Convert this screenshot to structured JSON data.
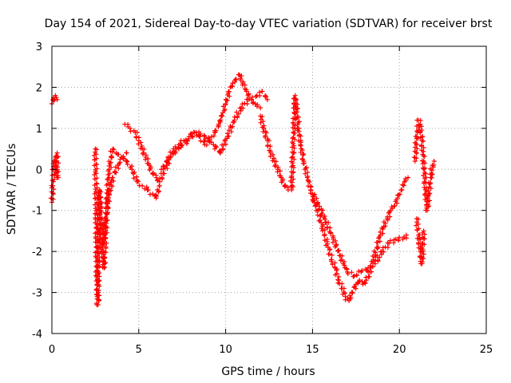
{
  "chart_data": {
    "type": "scatter",
    "title": "Day 154 of 2021, Sidereal Day-to-day VTEC variation (SDTVAR) for receiver brst",
    "xlabel": "GPS time / hours",
    "ylabel": "SDTVAR / TECUs",
    "xlim": [
      0,
      25
    ],
    "ylim": [
      -4,
      3
    ],
    "xticks": [
      "0",
      "5",
      "10",
      "15",
      "20",
      "25"
    ],
    "yticks": [
      "-4",
      "-3",
      "-2",
      "-1",
      "0",
      "1",
      "2",
      "3"
    ],
    "grid": true,
    "marker": "+",
    "color": "#ff0000",
    "series": [
      {
        "name": "segment-0",
        "x": [
          0.0,
          0.05,
          0.1,
          0.15,
          0.2,
          0.25,
          0.3
        ],
        "y": [
          1.6,
          1.7,
          1.75,
          1.7,
          1.8,
          1.75,
          1.7
        ]
      },
      {
        "name": "segment-1",
        "x": [
          0.0,
          0.05,
          0.1,
          0.15,
          0.2,
          0.25,
          0.3,
          0.3
        ],
        "y": [
          -0.8,
          -0.4,
          0.0,
          0.2,
          0.3,
          0.1,
          -0.2,
          0.4
        ]
      },
      {
        "name": "segment-2",
        "x": [
          2.5,
          2.55,
          2.6,
          2.65,
          2.7,
          2.75,
          2.8,
          2.9,
          3.0,
          3.1,
          3.2,
          3.3,
          3.4,
          3.5,
          3.7,
          4.0,
          4.3,
          4.6,
          4.9,
          5.2,
          5.5,
          5.8,
          6.0,
          6.2
        ],
        "y": [
          0.5,
          -1.0,
          -2.8,
          -3.3,
          -1.5,
          -0.5,
          -1.0,
          -2.0,
          -2.4,
          -1.5,
          -0.5,
          0.0,
          0.3,
          0.5,
          0.4,
          0.3,
          0.2,
          0.0,
          -0.3,
          -0.4,
          -0.5,
          -0.6,
          -0.7,
          -0.4
        ]
      },
      {
        "name": "segment-3",
        "x": [
          2.9,
          3.1,
          3.3,
          3.5,
          3.8,
          4.1,
          4.3
        ],
        "y": [
          -1.8,
          -1.2,
          -0.6,
          -0.2,
          0.1,
          0.3,
          0.4
        ]
      },
      {
        "name": "segment-4",
        "x": [
          4.2,
          4.5,
          4.8,
          5.0,
          5.2,
          5.4,
          5.6,
          5.8,
          6.0,
          6.2,
          6.4,
          6.6,
          6.8,
          7.0,
          7.3,
          7.6,
          7.9,
          8.2,
          8.5,
          8.8,
          9.0,
          9.2,
          9.4,
          9.6,
          9.8,
          10.0,
          10.2,
          10.4,
          10.6,
          10.8,
          11.0,
          11.2,
          11.5,
          11.8,
          12.1,
          12.4
        ],
        "y": [
          1.1,
          1.0,
          0.9,
          0.7,
          0.5,
          0.3,
          0.1,
          -0.1,
          -0.2,
          -0.3,
          -0.1,
          0.1,
          0.3,
          0.5,
          0.6,
          0.7,
          0.8,
          0.9,
          0.8,
          0.6,
          0.7,
          0.8,
          0.9,
          1.1,
          1.3,
          1.6,
          1.9,
          2.1,
          2.2,
          2.3,
          2.1,
          1.9,
          1.7,
          1.8,
          1.9,
          1.7
        ]
      },
      {
        "name": "segment-5",
        "x": [
          6.3,
          6.8,
          7.3,
          7.8,
          8.3,
          8.8,
          9.3,
          9.7,
          10.1,
          10.5,
          10.9,
          11.3,
          11.7,
          12.0
        ],
        "y": [
          0.0,
          0.3,
          0.5,
          0.7,
          0.9,
          0.8,
          0.6,
          0.4,
          0.8,
          1.2,
          1.5,
          1.7,
          1.6,
          1.5
        ]
      },
      {
        "name": "segment-6",
        "x": [
          12.0,
          12.2,
          12.4,
          12.6,
          12.8,
          13.0,
          13.2,
          13.4,
          13.6,
          13.8,
          14.0,
          14.1,
          14.2,
          14.3,
          14.5,
          14.7,
          14.9,
          15.1,
          15.3,
          15.5,
          15.7,
          15.9,
          16.1,
          16.3,
          16.5,
          16.7,
          16.9,
          17.1,
          17.3,
          17.5,
          17.7,
          17.9,
          18.1,
          18.3,
          18.5,
          18.7,
          18.9,
          19.1,
          19.3,
          19.5,
          19.7,
          19.9,
          20.1,
          20.3,
          20.5
        ],
        "y": [
          1.3,
          1.0,
          0.7,
          0.4,
          0.2,
          0.0,
          -0.2,
          -0.4,
          -0.5,
          -0.5,
          1.8,
          1.4,
          1.0,
          0.6,
          0.2,
          -0.2,
          -0.5,
          -0.8,
          -1.0,
          -1.3,
          -1.6,
          -1.9,
          -2.2,
          -2.4,
          -2.7,
          -2.9,
          -3.1,
          -3.2,
          -3.0,
          -2.8,
          -2.7,
          -2.8,
          -2.7,
          -2.5,
          -2.2,
          -1.9,
          -1.6,
          -1.4,
          -1.2,
          -1.0,
          -0.9,
          -0.7,
          -0.5,
          -0.3,
          -0.2
        ]
      },
      {
        "name": "segment-7",
        "x": [
          15.0,
          15.4,
          15.8,
          16.2,
          16.6,
          17.0,
          17.4,
          17.8,
          18.2,
          18.6,
          19.0,
          19.4,
          19.8,
          20.2,
          20.4
        ],
        "y": [
          -0.6,
          -0.9,
          -1.3,
          -1.7,
          -2.1,
          -2.5,
          -2.6,
          -2.5,
          -2.4,
          -2.3,
          -2.0,
          -1.8,
          -1.7,
          -1.7,
          -1.6
        ]
      },
      {
        "name": "segment-8",
        "x": [
          20.9,
          21.0,
          21.1,
          21.2,
          21.3,
          21.4,
          21.5,
          21.6,
          21.7,
          21.8,
          21.9,
          22.0
        ],
        "y": [
          0.2,
          0.8,
          1.2,
          1.1,
          0.7,
          0.2,
          -0.5,
          -1.0,
          -0.6,
          -0.2,
          0.1,
          0.2
        ]
      },
      {
        "name": "segment-9",
        "x": [
          21.0,
          21.1,
          21.2,
          21.3,
          21.4
        ],
        "y": [
          -1.2,
          -1.6,
          -2.0,
          -2.3,
          -1.5
        ]
      }
    ]
  }
}
